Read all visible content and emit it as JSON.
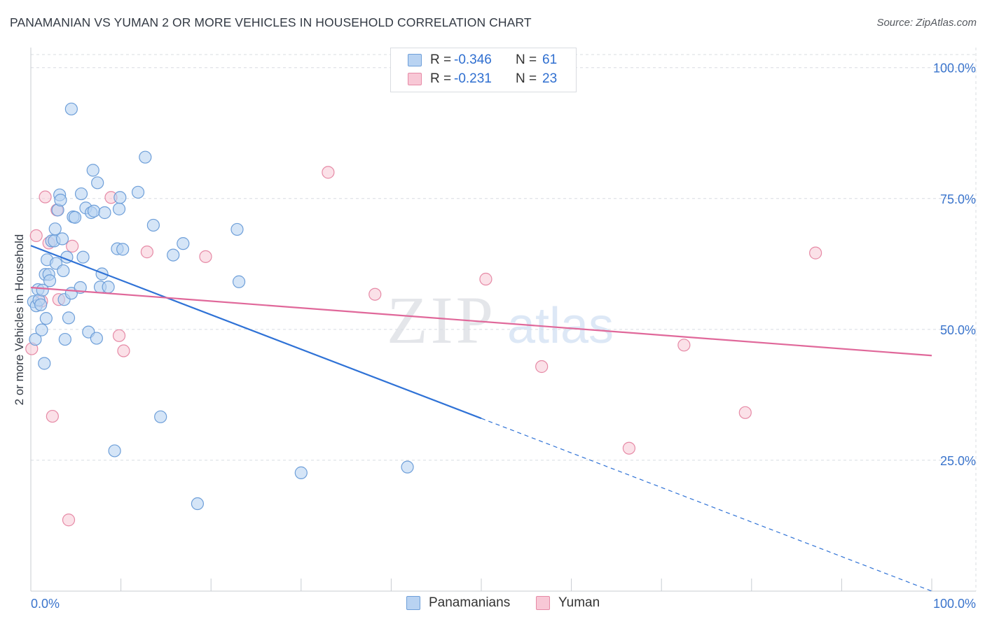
{
  "title": "PANAMANIAN VS YUMAN 2 OR MORE VEHICLES IN HOUSEHOLD CORRELATION CHART",
  "source": "Source: ZipAtlas.com",
  "watermark": {
    "zip": "ZIP",
    "atlas": "atlas"
  },
  "legend": {
    "r_label": "R =",
    "n_label": "N =",
    "rows": [
      {
        "r": "-0.346",
        "n": "61"
      },
      {
        "r": "-0.231",
        "n": "23"
      }
    ]
  },
  "series_legend": [
    "Panamanians",
    "Yuman"
  ],
  "colors": {
    "blue_fill": "#b9d3f2",
    "blue_stroke": "#6e9fd9",
    "blue_line": "#2f72d6",
    "pink_fill": "#f8c8d6",
    "pink_stroke": "#e68aa6",
    "pink_line": "#e0689a",
    "tick_label": "#3a74cc",
    "grid": "#d8dce2"
  },
  "chart_data": {
    "type": "scatter",
    "title": "PANAMANIAN VS YUMAN 2 OR MORE VEHICLES IN HOUSEHOLD CORRELATION CHART",
    "xlabel": "",
    "ylabel": "2 or more Vehicles in Household",
    "xlim": [
      0,
      100
    ],
    "ylim": [
      0,
      102.5
    ],
    "x_tick_labels": [
      "0.0%",
      "100.0%"
    ],
    "y_ticks": [
      25,
      50,
      75,
      100
    ],
    "y_tick_labels": [
      "25.0%",
      "50.0%",
      "75.0%",
      "100.0%"
    ],
    "grid": true,
    "series": [
      {
        "name": "Panamanians",
        "r": -0.346,
        "n": 61,
        "trend": {
          "x": [
            0,
            50
          ],
          "y": [
            66,
            33
          ],
          "dashed_to": [
            100,
            0
          ]
        },
        "points": [
          [
            0.3,
            55.3
          ],
          [
            0.5,
            48.1
          ],
          [
            0.6,
            54.5
          ],
          [
            0.8,
            57.6
          ],
          [
            0.9,
            55.6
          ],
          [
            1.1,
            54.7
          ],
          [
            1.2,
            49.9
          ],
          [
            1.3,
            57.5
          ],
          [
            1.5,
            43.5
          ],
          [
            1.6,
            60.5
          ],
          [
            1.7,
            52.1
          ],
          [
            1.8,
            63.3
          ],
          [
            2.0,
            60.5
          ],
          [
            2.1,
            59.3
          ],
          [
            2.3,
            66.9
          ],
          [
            2.6,
            66.9
          ],
          [
            2.7,
            69.2
          ],
          [
            2.8,
            62.6
          ],
          [
            3.0,
            72.8
          ],
          [
            3.2,
            75.7
          ],
          [
            3.3,
            74.7
          ],
          [
            3.5,
            67.3
          ],
          [
            3.6,
            61.2
          ],
          [
            3.7,
            55.7
          ],
          [
            3.8,
            48.1
          ],
          [
            4.0,
            63.8
          ],
          [
            4.2,
            52.2
          ],
          [
            4.5,
            56.9
          ],
          [
            4.5,
            92.1
          ],
          [
            4.7,
            71.5
          ],
          [
            4.9,
            71.4
          ],
          [
            5.5,
            58.0
          ],
          [
            5.6,
            75.9
          ],
          [
            5.8,
            63.8
          ],
          [
            6.1,
            73.2
          ],
          [
            6.4,
            49.5
          ],
          [
            6.7,
            72.3
          ],
          [
            6.9,
            80.4
          ],
          [
            7.0,
            72.6
          ],
          [
            7.3,
            48.3
          ],
          [
            7.4,
            78.0
          ],
          [
            7.7,
            58.1
          ],
          [
            7.9,
            60.6
          ],
          [
            8.2,
            72.3
          ],
          [
            8.6,
            58.1
          ],
          [
            9.3,
            26.8
          ],
          [
            9.6,
            65.4
          ],
          [
            9.8,
            73.0
          ],
          [
            9.9,
            75.2
          ],
          [
            10.2,
            65.3
          ],
          [
            11.9,
            76.2
          ],
          [
            12.7,
            82.9
          ],
          [
            13.6,
            69.9
          ],
          [
            14.4,
            33.3
          ],
          [
            15.8,
            64.2
          ],
          [
            16.9,
            66.4
          ],
          [
            18.5,
            16.7
          ],
          [
            22.9,
            69.1
          ],
          [
            23.1,
            59.1
          ],
          [
            30.0,
            22.6
          ],
          [
            41.8,
            23.7
          ]
        ]
      },
      {
        "name": "Yuman",
        "r": -0.231,
        "n": 23,
        "trend": {
          "x": [
            0,
            100
          ],
          "y": [
            58,
            45
          ]
        },
        "points": [
          [
            0.1,
            46.3
          ],
          [
            0.6,
            67.9
          ],
          [
            1.2,
            55.4
          ],
          [
            1.6,
            75.3
          ],
          [
            2.0,
            66.5
          ],
          [
            2.4,
            33.4
          ],
          [
            2.9,
            72.8
          ],
          [
            3.1,
            55.7
          ],
          [
            4.2,
            13.6
          ],
          [
            4.6,
            65.9
          ],
          [
            8.9,
            75.2
          ],
          [
            9.8,
            48.8
          ],
          [
            10.3,
            45.9
          ],
          [
            12.9,
            64.8
          ],
          [
            19.4,
            63.9
          ],
          [
            33.0,
            80.0
          ],
          [
            38.2,
            56.7
          ],
          [
            50.5,
            59.6
          ],
          [
            56.7,
            42.9
          ],
          [
            66.4,
            27.3
          ],
          [
            72.5,
            47.0
          ],
          [
            79.3,
            34.1
          ],
          [
            87.1,
            64.6
          ]
        ]
      }
    ]
  }
}
